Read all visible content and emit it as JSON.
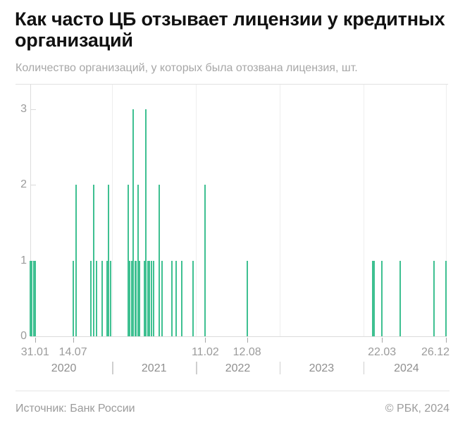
{
  "header": {
    "title": "Как часто ЦБ отзывает лицензии у кредитных организаций",
    "subtitle": "Количество организаций, у которых была отозвана лицензия, шт."
  },
  "footer": {
    "source": "Источник: Банк России",
    "copyright": "© РБК, 2024"
  },
  "chart_data": {
    "type": "bar",
    "title": "Как часто ЦБ отзывает лицензии у кредитных организаций",
    "ylabel": "Количество организаций, у которых была отозвана лицензия, шт.",
    "ylim": [
      0,
      3
    ],
    "yticks": [
      0,
      1,
      2,
      3
    ],
    "grid": "vertical-year-boundaries",
    "legend": "none",
    "bar_color": "#3ec091",
    "axis_start": "2020-01-10",
    "axis_end": "2024-12-26",
    "years": [
      "2020",
      "2021",
      "2022",
      "2023",
      "2024"
    ],
    "x_ticks": [
      {
        "label": "31.01",
        "date": "2020-01-31"
      },
      {
        "label": "14.07",
        "date": "2020-07-14"
      },
      {
        "label": "11.02",
        "date": "2022-02-11"
      },
      {
        "label": "12.08",
        "date": "2022-08-12"
      },
      {
        "label": "22.03",
        "date": "2024-03-22"
      },
      {
        "label": "26.12",
        "date": "2024-12-26"
      }
    ],
    "bars": [
      {
        "date": "2020-01-10",
        "value": 1
      },
      {
        "date": "2020-01-17",
        "value": 1
      },
      {
        "date": "2020-01-24",
        "value": 1
      },
      {
        "date": "2020-01-31",
        "value": 1
      },
      {
        "date": "2020-07-14",
        "value": 1
      },
      {
        "date": "2020-07-29",
        "value": 2
      },
      {
        "date": "2020-10-01",
        "value": 1
      },
      {
        "date": "2020-10-12",
        "value": 2
      },
      {
        "date": "2020-10-26",
        "value": 1
      },
      {
        "date": "2020-11-18",
        "value": 1
      },
      {
        "date": "2020-12-09",
        "value": 1
      },
      {
        "date": "2020-12-16",
        "value": 2
      },
      {
        "date": "2020-12-24",
        "value": 1
      },
      {
        "date": "2021-03-12",
        "value": 2
      },
      {
        "date": "2021-03-19",
        "value": 1
      },
      {
        "date": "2021-03-27",
        "value": 1
      },
      {
        "date": "2021-04-02",
        "value": 3
      },
      {
        "date": "2021-04-10",
        "value": 1
      },
      {
        "date": "2021-04-16",
        "value": 1
      },
      {
        "date": "2021-04-23",
        "value": 2
      },
      {
        "date": "2021-04-30",
        "value": 1
      },
      {
        "date": "2021-05-21",
        "value": 1
      },
      {
        "date": "2021-05-29",
        "value": 3
      },
      {
        "date": "2021-06-05",
        "value": 1
      },
      {
        "date": "2021-06-13",
        "value": 1
      },
      {
        "date": "2021-06-21",
        "value": 1
      },
      {
        "date": "2021-06-29",
        "value": 1
      },
      {
        "date": "2021-07-25",
        "value": 2
      },
      {
        "date": "2021-08-06",
        "value": 1
      },
      {
        "date": "2021-09-17",
        "value": 1
      },
      {
        "date": "2021-10-08",
        "value": 1
      },
      {
        "date": "2021-10-31",
        "value": 1
      },
      {
        "date": "2021-12-20",
        "value": 1
      },
      {
        "date": "2022-02-11",
        "value": 2
      },
      {
        "date": "2022-08-12",
        "value": 1
      },
      {
        "date": "2024-02-09",
        "value": 1
      },
      {
        "date": "2024-02-16",
        "value": 1
      },
      {
        "date": "2024-03-22",
        "value": 1
      },
      {
        "date": "2024-06-08",
        "value": 1
      },
      {
        "date": "2024-11-05",
        "value": 1
      },
      {
        "date": "2024-12-26",
        "value": 1
      }
    ],
    "colors": {
      "bar": "#3ec091",
      "axis_line": "#dcdcdc",
      "top_border": "#e2e2e2",
      "gridline": "#eeeeee",
      "y_tick_dash": "#d9d9d9",
      "x_tick_dash": "#a6a6a6",
      "tick_label": "#9b9b9b",
      "year_label": "#8f8f8f",
      "year_separator": "#cfcfcf"
    }
  }
}
